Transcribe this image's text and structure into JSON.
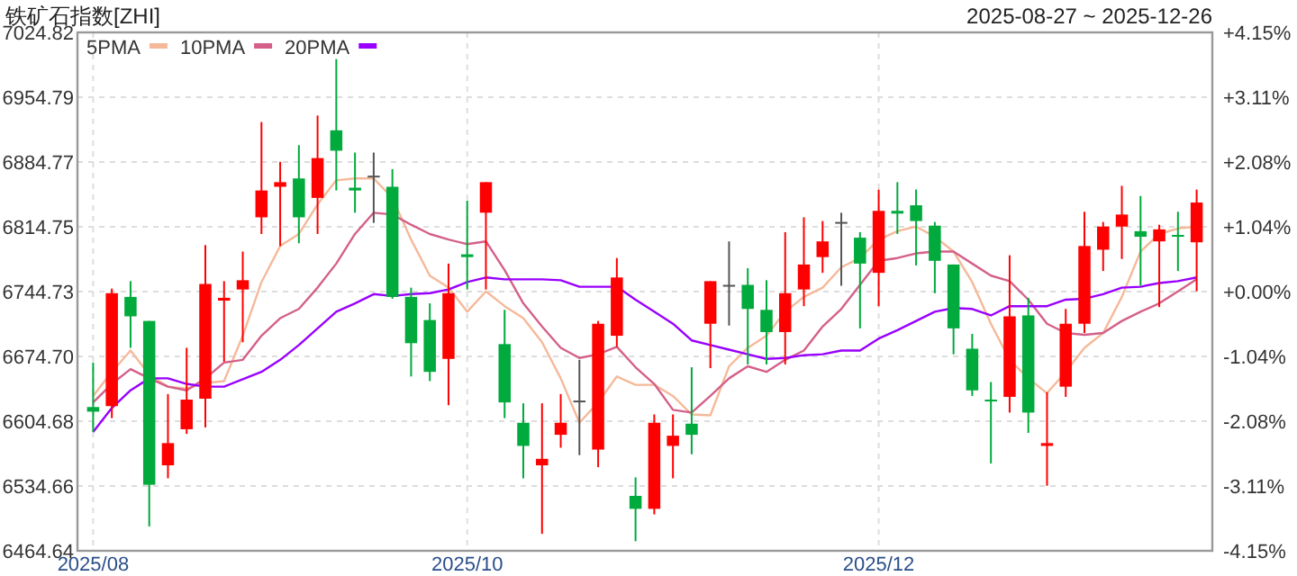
{
  "chart_data": {
    "type": "candlestick",
    "title": "铁矿石指数[ZHI]",
    "subtitle": "2025-08-27 ~ 2025-12-26",
    "categories": [
      "2025/08",
      null,
      null,
      null,
      null,
      null,
      null,
      null,
      null,
      null,
      null,
      null,
      null,
      null,
      null,
      null,
      null,
      null,
      null,
      null,
      "2025/10",
      null,
      null,
      null,
      null,
      null,
      null,
      null,
      null,
      null,
      null,
      null,
      null,
      null,
      null,
      null,
      null,
      null,
      null,
      null,
      null,
      null,
      "2025/12",
      null,
      null,
      null,
      null,
      null,
      null,
      null,
      null,
      null,
      null,
      null,
      null,
      null,
      null,
      null,
      null,
      null
    ],
    "ohlc": [
      [
        6620,
        6668,
        6593,
        6615
      ],
      [
        6621,
        6748,
        6608,
        6743
      ],
      [
        6739,
        6756,
        6684,
        6718
      ],
      [
        6713,
        6713,
        6491,
        6536
      ],
      [
        6557,
        6634,
        6543,
        6581
      ],
      [
        6596,
        6684,
        6591,
        6628
      ],
      [
        6629,
        6795,
        6598,
        6753
      ],
      [
        6735,
        6756,
        6669,
        6738
      ],
      [
        6747,
        6788,
        6690,
        6757
      ],
      [
        6825,
        6928,
        6807,
        6854
      ],
      [
        6858,
        6885,
        6794,
        6863
      ],
      [
        6867,
        6903,
        6797,
        6825
      ],
      [
        6846,
        6935,
        6807,
        6889
      ],
      [
        6919,
        6996,
        6854,
        6897
      ],
      [
        6857,
        6895,
        6830,
        6854
      ],
      [
        6870,
        6895,
        6819,
        6870
      ],
      [
        6858,
        6877,
        6737,
        6739
      ],
      [
        6739,
        6749,
        6653,
        6689
      ],
      [
        6714,
        6732,
        6648,
        6658
      ],
      [
        6672,
        6775,
        6622,
        6743
      ],
      [
        6785,
        6843,
        6747,
        6782
      ],
      [
        6830,
        6863,
        6747,
        6863
      ],
      [
        6688,
        6725,
        6608,
        6625
      ],
      [
        6603,
        6624,
        6543,
        6578
      ],
      [
        6557,
        6624,
        6483,
        6564
      ],
      [
        6590,
        6634,
        6576,
        6603
      ],
      [
        6627,
        6671,
        6568,
        6627
      ],
      [
        6574,
        6713,
        6555,
        6710
      ],
      [
        6697,
        6781,
        6685,
        6760
      ],
      [
        6524,
        6544,
        6475,
        6510
      ],
      [
        6510,
        6612,
        6504,
        6603
      ],
      [
        6578,
        6612,
        6543,
        6589
      ],
      [
        6602,
        6663,
        6569,
        6590
      ],
      [
        6710,
        6756,
        6662,
        6756
      ],
      [
        6752,
        6799,
        6708,
        6752
      ],
      [
        6752,
        6770,
        6666,
        6726
      ],
      [
        6725,
        6757,
        6666,
        6701
      ],
      [
        6701,
        6809,
        6666,
        6743
      ],
      [
        6747,
        6825,
        6729,
        6774
      ],
      [
        6782,
        6821,
        6765,
        6799
      ],
      [
        6820,
        6830,
        6751,
        6820
      ],
      [
        6803,
        6809,
        6705,
        6775
      ],
      [
        6765,
        6855,
        6729,
        6832
      ],
      [
        6832,
        6863,
        6807,
        6829
      ],
      [
        6838,
        6855,
        6773,
        6821
      ],
      [
        6816,
        6820,
        6743,
        6778
      ],
      [
        6774,
        6774,
        6677,
        6705
      ],
      [
        6683,
        6699,
        6632,
        6638
      ],
      [
        6628,
        6647,
        6559,
        6627
      ],
      [
        6631,
        6784,
        6614,
        6718
      ],
      [
        6719,
        6738,
        6592,
        6614
      ],
      [
        6578,
        6636,
        6535,
        6581
      ],
      [
        6642,
        6726,
        6631,
        6710
      ],
      [
        6710,
        6831,
        6700,
        6794
      ],
      [
        6790,
        6820,
        6767,
        6815
      ],
      [
        6815,
        6859,
        6780,
        6828
      ],
      [
        6810,
        6848,
        6751,
        6804
      ],
      [
        6799,
        6817,
        6728,
        6812
      ],
      [
        6806,
        6831,
        6767,
        6804
      ],
      [
        6798,
        6855,
        6745,
        6841
      ]
    ],
    "series": [
      {
        "name": "5PMA",
        "type": "line",
        "color": "#f5b99a",
        "values": [
          6632,
          6658,
          6681,
          6655,
          6642,
          6640,
          6646,
          6648,
          6697,
          6755,
          6794,
          6807,
          6839,
          6865,
          6867,
          6867,
          6846,
          6801,
          6762,
          6749,
          6723,
          6745,
          6729,
          6716,
          6690,
          6651,
          6603,
          6625,
          6653,
          6644,
          6644,
          6632,
          6612,
          6611,
          6664,
          6684,
          6697,
          6723,
          6739,
          6749,
          6771,
          6781,
          6801,
          6810,
          6815,
          6804,
          6788,
          6755,
          6710,
          6671,
          6651,
          6635,
          6658,
          6684,
          6700,
          6739,
          6788,
          6807,
          6813,
          6815
        ]
      },
      {
        "name": "10PMA",
        "type": "line",
        "color": "#d4608a",
        "values": [
          6625,
          6645,
          6661,
          6651,
          6642,
          6638,
          6651,
          6668,
          6671,
          6697,
          6716,
          6726,
          6749,
          6775,
          6807,
          6830,
          6828,
          6817,
          6807,
          6801,
          6796,
          6799,
          6768,
          6732,
          6707,
          6684,
          6673,
          6677,
          6685,
          6663,
          6645,
          6617,
          6614,
          6632,
          6651,
          6664,
          6658,
          6671,
          6681,
          6707,
          6726,
          6752,
          6778,
          6781,
          6786,
          6788,
          6788,
          6775,
          6762,
          6756,
          6736,
          6710,
          6700,
          6698,
          6700,
          6713,
          6723,
          6732,
          6745,
          6758
        ]
      },
      {
        "name": "20PMA",
        "type": "line",
        "color": "#9900ff",
        "values": [
          6593,
          6619,
          6638,
          6651,
          6651,
          6645,
          6642,
          6642,
          6650,
          6658,
          6671,
          6687,
          6705,
          6723,
          6732,
          6742,
          6740,
          6742,
          6743,
          6747,
          6755,
          6760,
          6758,
          6758,
          6758,
          6757,
          6750,
          6750,
          6750,
          6736,
          6723,
          6710,
          6692,
          6687,
          6682,
          6677,
          6672,
          6673,
          6676,
          6677,
          6681,
          6681,
          6694,
          6703,
          6713,
          6723,
          6727,
          6726,
          6719,
          6729,
          6729,
          6729,
          6736,
          6737,
          6742,
          6749,
          6750,
          6754,
          6756,
          6760
        ]
      }
    ],
    "ylim": [
      6464.64,
      7024.82
    ],
    "yticks": [
      6464.64,
      6534.66,
      6604.68,
      {
        "value": 6674.7,
        "label": "6674.70"
      },
      6744.73,
      6814.75,
      6884.77,
      6954.79,
      7024.82
    ],
    "y2lim": [
      -4.15,
      4.15
    ],
    "y2ticks": [
      {
        "value": -4.15,
        "label": "-4.15%"
      },
      {
        "value": -3.11,
        "label": "-3.11%"
      },
      {
        "value": -2.08,
        "label": "-2.08%"
      },
      {
        "value": -1.04,
        "label": "-1.04%"
      },
      {
        "value": 0,
        "label": "+0.00%"
      },
      {
        "value": 1.04,
        "label": "+1.04%"
      },
      {
        "value": 2.08,
        "label": "+2.08%"
      },
      {
        "value": 3.11,
        "label": "+3.11%"
      },
      {
        "value": 4.15,
        "label": "+4.15%"
      }
    ],
    "grid": true,
    "legend": "top left"
  }
}
